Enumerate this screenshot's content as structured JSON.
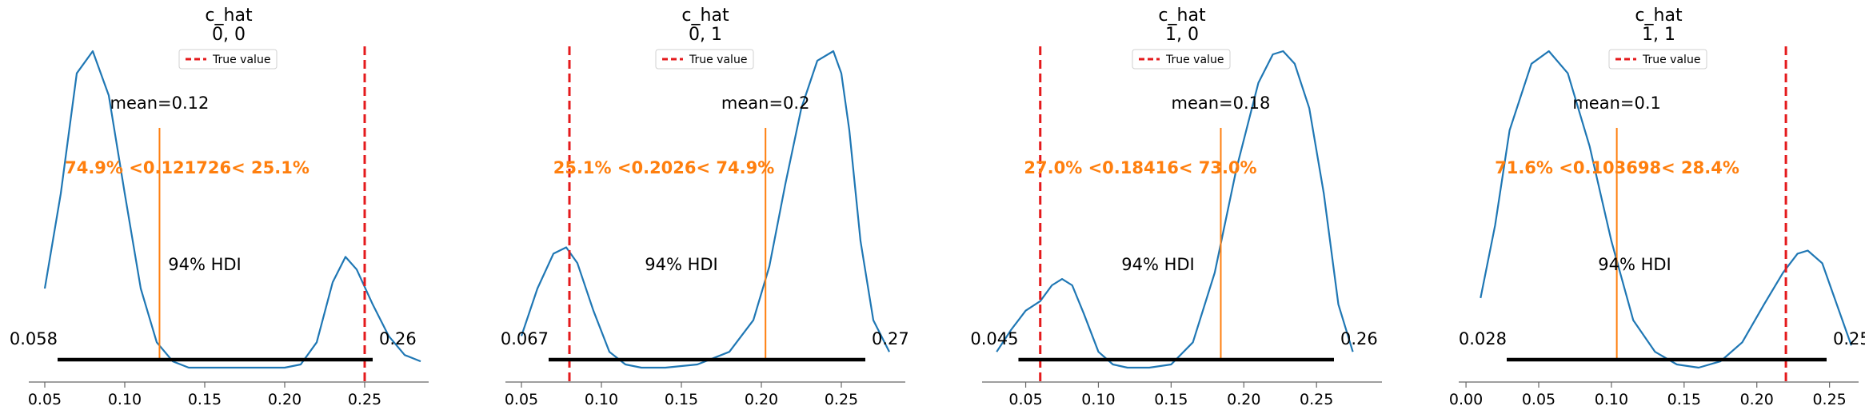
{
  "legend_label": "True value",
  "hdi_label": "94% HDI",
  "colors": {
    "kde": "#1f77b4",
    "ref": "#ff7f0e",
    "true": "#e41a1c",
    "hdi": "#000000",
    "axis": "#666666"
  },
  "chart_data": [
    {
      "type": "line",
      "title": "c_hat",
      "subtitle": "0, 0",
      "xlim": [
        0.04,
        0.29
      ],
      "xticks": [
        0.05,
        0.1,
        0.15,
        0.2,
        0.25
      ],
      "xtick_labels": [
        "0.05",
        "0.10",
        "0.15",
        "0.20",
        "0.25"
      ],
      "true_value": 0.25,
      "mean_label": "mean=0.12",
      "mean_value": 0.121726,
      "ref_label": "74.9% <0.121726< 25.1%",
      "hdi": [
        0.058,
        0.255
      ],
      "hdi_low_label": "0.058",
      "hdi_high_label": "0.26",
      "density": {
        "x": [
          0.05,
          0.06,
          0.07,
          0.08,
          0.09,
          0.1,
          0.11,
          0.12,
          0.13,
          0.14,
          0.15,
          0.16,
          0.17,
          0.18,
          0.19,
          0.2,
          0.21,
          0.22,
          0.23,
          0.238,
          0.245,
          0.255,
          0.265,
          0.275,
          0.285
        ],
        "y": [
          0.25,
          0.55,
          0.93,
          1.0,
          0.86,
          0.55,
          0.25,
          0.08,
          0.02,
          0.0,
          0.0,
          0.0,
          0.0,
          0.0,
          0.0,
          0.0,
          0.01,
          0.08,
          0.27,
          0.35,
          0.31,
          0.2,
          0.1,
          0.04,
          0.02
        ]
      }
    },
    {
      "type": "line",
      "title": "c_hat",
      "subtitle": "0, 1",
      "xlim": [
        0.04,
        0.29
      ],
      "xticks": [
        0.05,
        0.1,
        0.15,
        0.2,
        0.25
      ],
      "xtick_labels": [
        "0.05",
        "0.10",
        "0.15",
        "0.20",
        "0.25"
      ],
      "true_value": 0.08,
      "mean_label": "mean=0.2",
      "mean_value": 0.2026,
      "ref_label": "25.1% <0.2026< 74.9%",
      "hdi": [
        0.067,
        0.265
      ],
      "hdi_low_label": "0.067",
      "hdi_high_label": "0.27",
      "density": {
        "x": [
          0.05,
          0.06,
          0.07,
          0.078,
          0.085,
          0.095,
          0.105,
          0.115,
          0.125,
          0.14,
          0.16,
          0.18,
          0.195,
          0.205,
          0.215,
          0.225,
          0.235,
          0.245,
          0.25,
          0.255,
          0.262,
          0.27,
          0.28
        ],
        "y": [
          0.1,
          0.25,
          0.36,
          0.38,
          0.33,
          0.18,
          0.05,
          0.01,
          0.0,
          0.0,
          0.01,
          0.05,
          0.15,
          0.32,
          0.58,
          0.82,
          0.97,
          1.0,
          0.93,
          0.75,
          0.4,
          0.15,
          0.05
        ]
      }
    },
    {
      "type": "line",
      "title": "c_hat",
      "subtitle": "1, 0",
      "xlim": [
        0.02,
        0.295
      ],
      "xticks": [
        0.05,
        0.1,
        0.15,
        0.2,
        0.25
      ],
      "xtick_labels": [
        "0.05",
        "0.10",
        "0.15",
        "0.20",
        "0.25"
      ],
      "true_value": 0.06,
      "mean_label": "mean=0.18",
      "mean_value": 0.18416,
      "ref_label": "27.0% <0.18416< 73.0%",
      "hdi": [
        0.045,
        0.262
      ],
      "hdi_low_label": "0.045",
      "hdi_high_label": "0.26",
      "density": {
        "x": [
          0.03,
          0.04,
          0.05,
          0.06,
          0.068,
          0.075,
          0.082,
          0.09,
          0.1,
          0.11,
          0.12,
          0.135,
          0.15,
          0.165,
          0.18,
          0.195,
          0.21,
          0.22,
          0.227,
          0.235,
          0.245,
          0.255,
          0.265,
          0.275
        ],
        "y": [
          0.05,
          0.12,
          0.18,
          0.21,
          0.26,
          0.28,
          0.26,
          0.17,
          0.05,
          0.01,
          0.0,
          0.0,
          0.01,
          0.08,
          0.3,
          0.63,
          0.9,
          0.99,
          1.0,
          0.96,
          0.82,
          0.55,
          0.2,
          0.05
        ]
      }
    },
    {
      "type": "line",
      "title": "c_hat",
      "subtitle": "1, 1",
      "xlim": [
        -0.005,
        0.27
      ],
      "xticks": [
        0.0,
        0.05,
        0.1,
        0.15,
        0.2,
        0.25
      ],
      "xtick_labels": [
        "0.00",
        "0.05",
        "0.10",
        "0.15",
        "0.20",
        "0.25"
      ],
      "true_value": 0.22,
      "mean_label": "mean=0.1",
      "mean_value": 0.103698,
      "ref_label": "71.6% <0.103698< 28.4%",
      "hdi": [
        0.028,
        0.248
      ],
      "hdi_low_label": "0.028",
      "hdi_high_label": "0.25",
      "density": {
        "x": [
          0.01,
          0.02,
          0.03,
          0.045,
          0.057,
          0.07,
          0.085,
          0.1,
          0.115,
          0.13,
          0.145,
          0.16,
          0.175,
          0.19,
          0.205,
          0.218,
          0.228,
          0.235,
          0.245,
          0.255,
          0.265
        ],
        "y": [
          0.22,
          0.45,
          0.75,
          0.96,
          1.0,
          0.93,
          0.7,
          0.4,
          0.15,
          0.05,
          0.01,
          0.0,
          0.02,
          0.08,
          0.2,
          0.3,
          0.36,
          0.37,
          0.33,
          0.2,
          0.07
        ]
      }
    }
  ]
}
